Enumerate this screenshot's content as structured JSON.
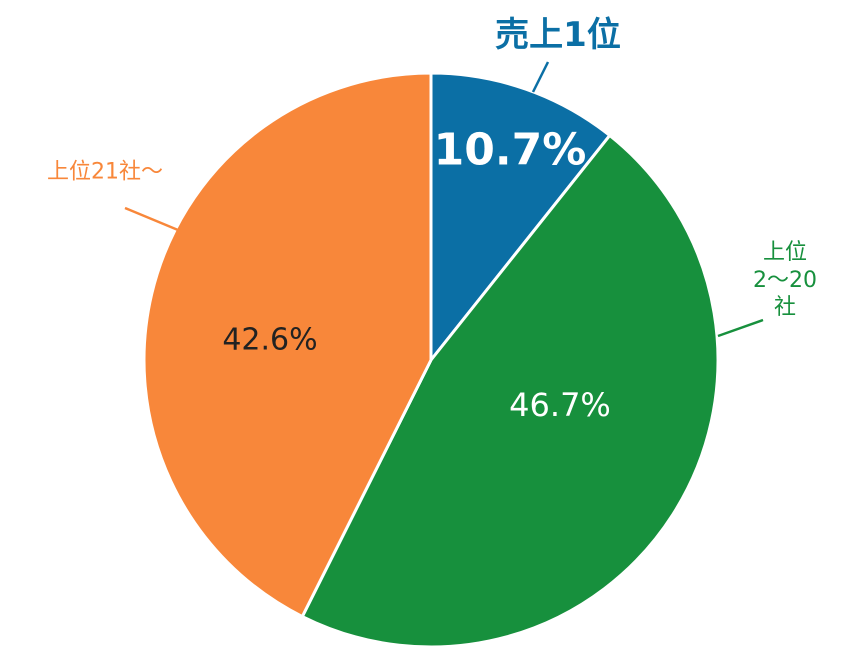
{
  "chart_data": {
    "type": "pie",
    "categories": [
      "売上1位",
      "上位\n2〜20社",
      "上位21社〜"
    ],
    "values": [
      10.7,
      46.7,
      42.6
    ],
    "value_labels": [
      "10.7%",
      "46.7%",
      "42.6%"
    ],
    "colors": [
      "#0b6fa5",
      "#17903d",
      "#f8873a"
    ]
  }
}
